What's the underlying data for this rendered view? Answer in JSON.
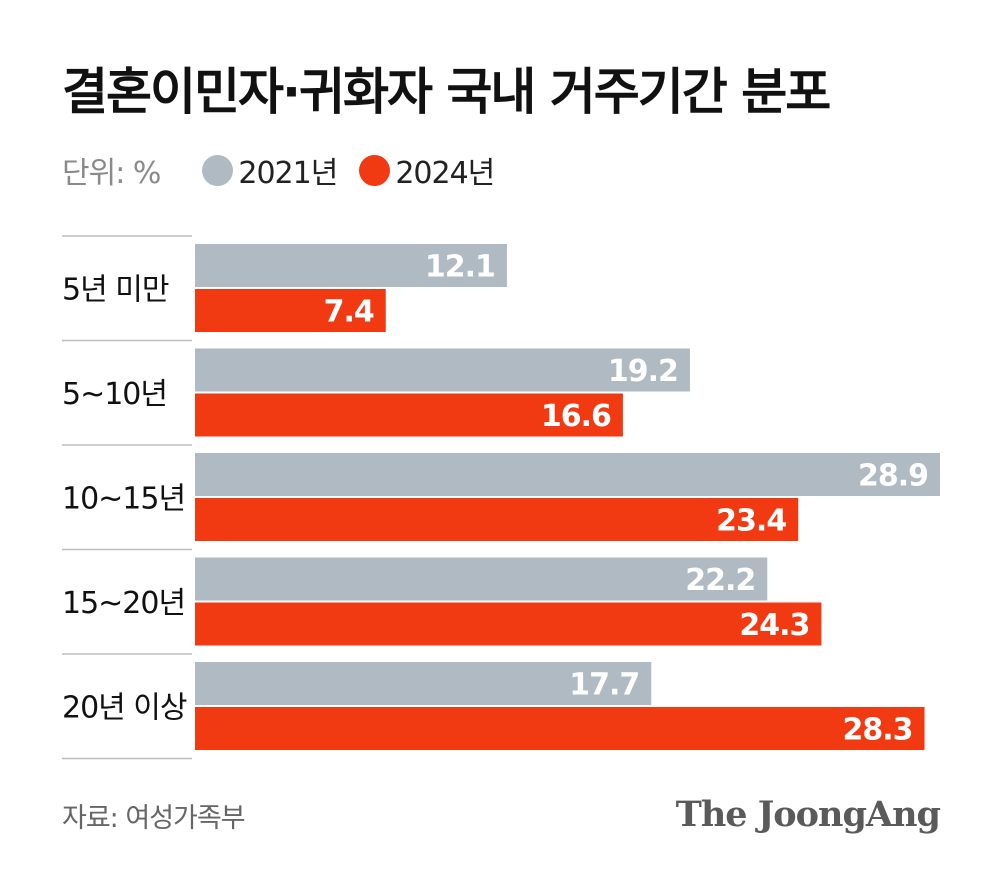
{
  "title": "결혼이민자·귀화자 국내 거주기간 분포",
  "legend": {
    "unit": "단위: %",
    "items": [
      {
        "label": "2021년",
        "color": "#b0bac2"
      },
      {
        "label": "2024년",
        "color": "#f23a12"
      }
    ]
  },
  "source": "자료: 여성가족부",
  "logo": "The JoongAng",
  "chart_data": {
    "type": "bar",
    "orientation": "horizontal",
    "categories": [
      "5년 미만",
      "5~10년",
      "10~15년",
      "15~20년",
      "20년 이상"
    ],
    "series": [
      {
        "name": "2021년",
        "color": "#b0bac2",
        "values": [
          12.1,
          19.2,
          28.9,
          22.2,
          17.7
        ]
      },
      {
        "name": "2024년",
        "color": "#f23a12",
        "values": [
          7.4,
          16.6,
          23.4,
          24.3,
          28.3
        ]
      }
    ],
    "xlim": [
      0,
      28.9
    ],
    "grid": false,
    "legend_position": "top-left",
    "data_labels": true
  }
}
